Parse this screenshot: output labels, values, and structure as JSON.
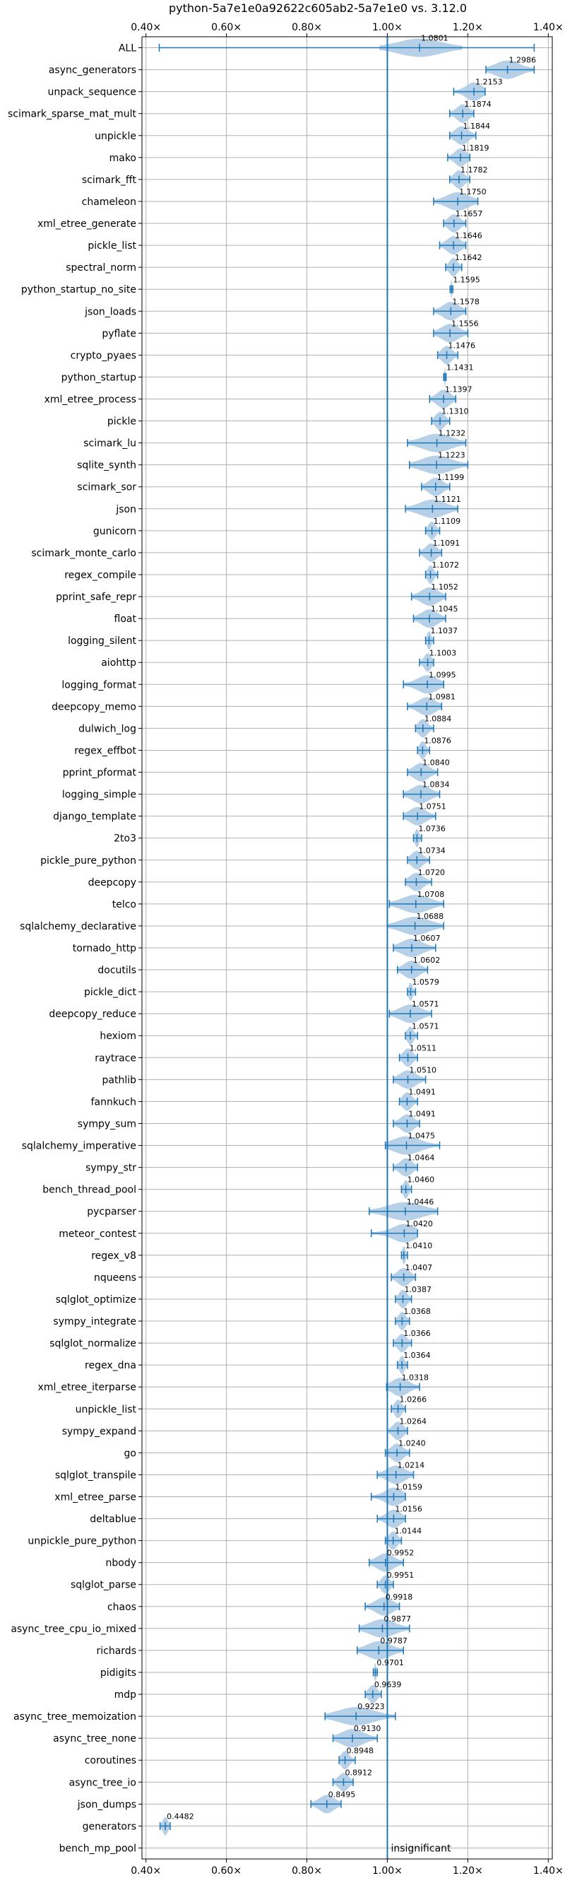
{
  "chart_data": {
    "type": "violin",
    "title": "python-5a7e1e0a92622c605ab2-5a7e1e0 vs. 3.12.0",
    "xlabel": "",
    "ylabel": "",
    "xlim": [
      0.39,
      1.41
    ],
    "xticks": [
      0.4,
      0.6,
      0.8,
      1.0,
      1.2,
      1.4
    ],
    "xtick_labels": [
      "0.40×",
      "0.60×",
      "0.80×",
      "1.00×",
      "1.20×",
      "1.40×"
    ],
    "reference_line": 1.0,
    "grid": true,
    "colors": {
      "accent": "#1f77b4",
      "violin": "#a9c8e4",
      "grid": "#b0b0b0",
      "axis": "#000000"
    },
    "benchmarks": [
      {
        "name": "ALL",
        "median": 1.0801,
        "min": 0.433,
        "max": 1.365,
        "p25": 1.0,
        "p75": 1.166
      },
      {
        "name": "async_generators",
        "median": 1.2986,
        "min": 1.245,
        "max": 1.365
      },
      {
        "name": "unpack_sequence",
        "median": 1.2153,
        "min": 1.165,
        "max": 1.243
      },
      {
        "name": "scimark_sparse_mat_mult",
        "median": 1.1874,
        "min": 1.155,
        "max": 1.215
      },
      {
        "name": "unpickle",
        "median": 1.1844,
        "min": 1.155,
        "max": 1.22
      },
      {
        "name": "mako",
        "median": 1.1819,
        "min": 1.15,
        "max": 1.205
      },
      {
        "name": "scimark_fft",
        "median": 1.1782,
        "min": 1.155,
        "max": 1.205
      },
      {
        "name": "chameleon",
        "median": 1.175,
        "min": 1.115,
        "max": 1.225
      },
      {
        "name": "xml_etree_generate",
        "median": 1.1657,
        "min": 1.14,
        "max": 1.195
      },
      {
        "name": "pickle_list",
        "median": 1.1646,
        "min": 1.13,
        "max": 1.195
      },
      {
        "name": "spectral_norm",
        "median": 1.1642,
        "min": 1.145,
        "max": 1.185
      },
      {
        "name": "python_startup_no_site",
        "median": 1.1595,
        "min": 1.156,
        "max": 1.163
      },
      {
        "name": "json_loads",
        "median": 1.1578,
        "min": 1.115,
        "max": 1.195
      },
      {
        "name": "pyflate",
        "median": 1.1556,
        "min": 1.115,
        "max": 1.2
      },
      {
        "name": "crypto_pyaes",
        "median": 1.1476,
        "min": 1.125,
        "max": 1.175
      },
      {
        "name": "python_startup",
        "median": 1.1431,
        "min": 1.14,
        "max": 1.146
      },
      {
        "name": "xml_etree_process",
        "median": 1.1397,
        "min": 1.105,
        "max": 1.17
      },
      {
        "name": "pickle",
        "median": 1.131,
        "min": 1.11,
        "max": 1.155
      },
      {
        "name": "scimark_lu",
        "median": 1.1232,
        "min": 1.05,
        "max": 1.195
      },
      {
        "name": "sqlite_synth",
        "median": 1.1223,
        "min": 1.055,
        "max": 1.2
      },
      {
        "name": "scimark_sor",
        "median": 1.1199,
        "min": 1.085,
        "max": 1.155
      },
      {
        "name": "json",
        "median": 1.1121,
        "min": 1.045,
        "max": 1.175
      },
      {
        "name": "gunicorn",
        "median": 1.1109,
        "min": 1.095,
        "max": 1.13
      },
      {
        "name": "scimark_monte_carlo",
        "median": 1.1091,
        "min": 1.08,
        "max": 1.135
      },
      {
        "name": "regex_compile",
        "median": 1.1072,
        "min": 1.095,
        "max": 1.125
      },
      {
        "name": "pprint_safe_repr",
        "median": 1.1052,
        "min": 1.06,
        "max": 1.145
      },
      {
        "name": "float",
        "median": 1.1045,
        "min": 1.065,
        "max": 1.145
      },
      {
        "name": "logging_silent",
        "median": 1.1037,
        "min": 1.095,
        "max": 1.115
      },
      {
        "name": "aiohttp",
        "median": 1.1003,
        "min": 1.08,
        "max": 1.115
      },
      {
        "name": "logging_format",
        "median": 1.0995,
        "min": 1.04,
        "max": 1.14
      },
      {
        "name": "deepcopy_memo",
        "median": 1.0981,
        "min": 1.05,
        "max": 1.135
      },
      {
        "name": "dulwich_log",
        "median": 1.0884,
        "min": 1.07,
        "max": 1.115
      },
      {
        "name": "regex_effbot",
        "median": 1.0876,
        "min": 1.075,
        "max": 1.105
      },
      {
        "name": "pprint_pformat",
        "median": 1.084,
        "min": 1.05,
        "max": 1.125
      },
      {
        "name": "logging_simple",
        "median": 1.0834,
        "min": 1.04,
        "max": 1.13
      },
      {
        "name": "django_template",
        "median": 1.0751,
        "min": 1.04,
        "max": 1.12
      },
      {
        "name": "2to3",
        "median": 1.0736,
        "min": 1.065,
        "max": 1.085
      },
      {
        "name": "pickle_pure_python",
        "median": 1.0734,
        "min": 1.05,
        "max": 1.105
      },
      {
        "name": "deepcopy",
        "median": 1.072,
        "min": 1.045,
        "max": 1.11
      },
      {
        "name": "telco",
        "median": 1.0708,
        "min": 1.005,
        "max": 1.14
      },
      {
        "name": "sqlalchemy_declarative",
        "median": 1.0688,
        "min": 1.0,
        "max": 1.14
      },
      {
        "name": "tornado_http",
        "median": 1.0607,
        "min": 1.015,
        "max": 1.12
      },
      {
        "name": "docutils",
        "median": 1.0602,
        "min": 1.025,
        "max": 1.1
      },
      {
        "name": "pickle_dict",
        "median": 1.0579,
        "min": 1.05,
        "max": 1.07
      },
      {
        "name": "deepcopy_reduce",
        "median": 1.0571,
        "min": 1.005,
        "max": 1.11
      },
      {
        "name": "hexiom",
        "median": 1.0571,
        "min": 1.045,
        "max": 1.075
      },
      {
        "name": "raytrace",
        "median": 1.0511,
        "min": 1.03,
        "max": 1.075
      },
      {
        "name": "pathlib",
        "median": 1.051,
        "min": 1.015,
        "max": 1.095
      },
      {
        "name": "fannkuch",
        "median": 1.0491,
        "min": 1.03,
        "max": 1.075
      },
      {
        "name": "sympy_sum",
        "median": 1.0491,
        "min": 1.015,
        "max": 1.08
      },
      {
        "name": "sqlalchemy_imperative",
        "median": 1.0475,
        "min": 0.995,
        "max": 1.13
      },
      {
        "name": "sympy_str",
        "median": 1.0464,
        "min": 1.015,
        "max": 1.075
      },
      {
        "name": "bench_thread_pool",
        "median": 1.046,
        "min": 1.035,
        "max": 1.06
      },
      {
        "name": "pycparser",
        "median": 1.0446,
        "min": 0.955,
        "max": 1.125
      },
      {
        "name": "meteor_contest",
        "median": 1.042,
        "min": 0.96,
        "max": 1.075
      },
      {
        "name": "regex_v8",
        "median": 1.041,
        "min": 1.035,
        "max": 1.05
      },
      {
        "name": "nqueens",
        "median": 1.0407,
        "min": 1.01,
        "max": 1.07
      },
      {
        "name": "sqlglot_optimize",
        "median": 1.0387,
        "min": 1.02,
        "max": 1.06
      },
      {
        "name": "sympy_integrate",
        "median": 1.0368,
        "min": 1.02,
        "max": 1.055
      },
      {
        "name": "sqlglot_normalize",
        "median": 1.0366,
        "min": 1.015,
        "max": 1.06
      },
      {
        "name": "regex_dna",
        "median": 1.0364,
        "min": 1.025,
        "max": 1.05
      },
      {
        "name": "xml_etree_iterparse",
        "median": 1.0318,
        "min": 0.998,
        "max": 1.08
      },
      {
        "name": "unpickle_list",
        "median": 1.0266,
        "min": 1.01,
        "max": 1.045
      },
      {
        "name": "sympy_expand",
        "median": 1.0264,
        "min": 1.0,
        "max": 1.05
      },
      {
        "name": "go",
        "median": 1.024,
        "min": 0.995,
        "max": 1.055
      },
      {
        "name": "sqlglot_transpile",
        "median": 1.0214,
        "min": 0.975,
        "max": 1.065
      },
      {
        "name": "xml_etree_parse",
        "median": 1.0159,
        "min": 0.96,
        "max": 1.045
      },
      {
        "name": "deltablue",
        "median": 1.0156,
        "min": 0.975,
        "max": 1.045
      },
      {
        "name": "unpickle_pure_python",
        "median": 1.0144,
        "min": 0.995,
        "max": 1.035
      },
      {
        "name": "nbody",
        "median": 0.9952,
        "min": 0.955,
        "max": 1.04
      },
      {
        "name": "sqlglot_parse",
        "median": 0.9951,
        "min": 0.975,
        "max": 1.015
      },
      {
        "name": "chaos",
        "median": 0.9918,
        "min": 0.945,
        "max": 1.03
      },
      {
        "name": "async_tree_cpu_io_mixed",
        "median": 0.9877,
        "min": 0.93,
        "max": 1.055
      },
      {
        "name": "richards",
        "median": 0.9787,
        "min": 0.925,
        "max": 1.04
      },
      {
        "name": "pidigits",
        "median": 0.9701,
        "min": 0.965,
        "max": 0.975
      },
      {
        "name": "mdp",
        "median": 0.9639,
        "min": 0.945,
        "max": 0.985
      },
      {
        "name": "async_tree_memoization",
        "median": 0.9223,
        "min": 0.845,
        "max": 1.02
      },
      {
        "name": "async_tree_none",
        "median": 0.913,
        "min": 0.865,
        "max": 0.975
      },
      {
        "name": "coroutines",
        "median": 0.8948,
        "min": 0.88,
        "max": 0.92
      },
      {
        "name": "async_tree_io",
        "median": 0.8912,
        "min": 0.865,
        "max": 0.915
      },
      {
        "name": "json_dumps",
        "median": 0.8495,
        "min": 0.81,
        "max": 0.885
      },
      {
        "name": "generators",
        "median": 0.4482,
        "min": 0.435,
        "max": 0.46
      },
      {
        "name": "bench_mp_pool",
        "median": null,
        "min": null,
        "max": null
      }
    ],
    "annotations": [
      {
        "benchmark": "bench_mp_pool",
        "text": "insignificant"
      }
    ]
  }
}
